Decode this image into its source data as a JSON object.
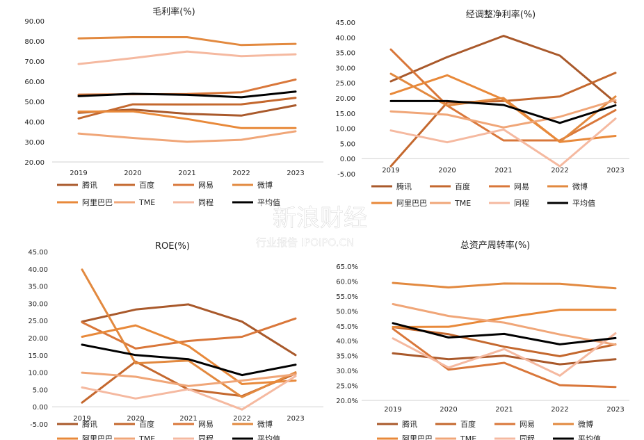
{
  "watermark": {
    "main": "新浪财经",
    "sub": "行业报告 IPOIPO.CN"
  },
  "colors": {
    "腾讯": "#a9592b",
    "百度": "#c4682e",
    "网易": "#d9773a",
    "微博": "#e2893f",
    "阿里巴巴": "#e8893a",
    "TME": "#f0a678",
    "同程": "#f5b9a0",
    "平均值": "#000000"
  },
  "chart_data": [
    {
      "type": "line",
      "title": "毛利率(%)",
      "categories": [
        "2019",
        "2020",
        "2021",
        "2022",
        "2023"
      ],
      "ylim": [
        20,
        90
      ],
      "yticks": [
        "20.00",
        "30.00",
        "40.00",
        "50.00",
        "60.00",
        "70.00",
        "80.00",
        "90.00"
      ],
      "series": [
        {
          "name": "腾讯",
          "values": [
            44.4,
            46.0,
            43.9,
            43.0,
            48.1
          ]
        },
        {
          "name": "百度",
          "values": [
            41.6,
            48.6,
            48.5,
            48.6,
            51.8
          ]
        },
        {
          "name": "网易",
          "values": [
            53.4,
            53.6,
            53.7,
            54.6,
            60.9
          ]
        },
        {
          "name": "微博",
          "values": [
            81.3,
            81.9,
            81.9,
            78.0,
            78.6
          ]
        },
        {
          "name": "阿里巴巴",
          "values": [
            45.0,
            45.1,
            41.3,
            36.8,
            36.8
          ]
        },
        {
          "name": "TME",
          "values": [
            34.1,
            31.9,
            30.0,
            31.0,
            35.2
          ]
        },
        {
          "name": "同程",
          "values": [
            68.6,
            71.5,
            74.8,
            72.5,
            73.4
          ]
        },
        {
          "name": "平均值",
          "values": [
            52.7,
            53.8,
            53.3,
            52.1,
            54.9
          ]
        }
      ],
      "legend": [
        "腾讯",
        "百度",
        "网易",
        "微博",
        "阿里巴巴",
        "TME",
        "同程",
        "平均值"
      ]
    },
    {
      "type": "line",
      "title": "经调整净利率(%)",
      "categories": [
        "2019",
        "2020",
        "2021",
        "2022",
        "2023"
      ],
      "ylim": [
        -5,
        45
      ],
      "yticks": [
        "-5.00",
        "0.00",
        "5.00",
        "10.00",
        "15.00",
        "20.00",
        "25.00",
        "30.00",
        "35.00",
        "40.00",
        "45.00"
      ],
      "series": [
        {
          "name": "腾讯",
          "values": [
            25.5,
            33.5,
            40.5,
            34.0,
            18.5
          ]
        },
        {
          "name": "百度",
          "values": [
            -2.5,
            18.5,
            19.0,
            20.5,
            28.3
          ]
        },
        {
          "name": "网易",
          "values": [
            36.0,
            17.5,
            6.0,
            6.0,
            16.0
          ]
        },
        {
          "name": "微博",
          "values": [
            28.0,
            17.5,
            20.0,
            5.5,
            20.5
          ]
        },
        {
          "name": "阿里巴巴",
          "values": [
            21.3,
            27.5,
            19.5,
            5.5,
            7.5
          ]
        },
        {
          "name": "TME",
          "values": [
            15.6,
            14.5,
            10.3,
            13.8,
            19.3
          ]
        },
        {
          "name": "同程",
          "values": [
            9.3,
            5.4,
            9.6,
            -2.5,
            13.2
          ]
        },
        {
          "name": "平均值",
          "values": [
            19.0,
            19.0,
            17.7,
            11.8,
            17.6
          ]
        }
      ],
      "legend": [
        "腾讯",
        "百度",
        "网易",
        "微博",
        "阿里巴巴",
        "TME",
        "同程",
        "平均值"
      ]
    },
    {
      "type": "line",
      "title": "ROE(%)",
      "categories": [
        "2019",
        "2020",
        "2021",
        "2022",
        "2023"
      ],
      "ylim": [
        -5,
        45
      ],
      "yticks": [
        "-5.00",
        "0.00",
        "5.00",
        "10.00",
        "15.00",
        "20.00",
        "25.00",
        "30.00",
        "35.00",
        "40.00",
        "45.00"
      ],
      "series": [
        {
          "name": "腾讯",
          "values": [
            24.7,
            28.2,
            29.7,
            24.7,
            15.0
          ]
        },
        {
          "name": "百度",
          "values": [
            1.2,
            13.1,
            5.0,
            3.1,
            9.6
          ]
        },
        {
          "name": "网易",
          "values": [
            24.5,
            16.9,
            19.1,
            20.3,
            25.6
          ]
        },
        {
          "name": "微博",
          "values": [
            39.8,
            12.6,
            13.4,
            2.8,
            10.0
          ]
        },
        {
          "name": "阿里巴巴",
          "values": [
            20.3,
            23.6,
            17.6,
            6.6,
            7.6
          ]
        },
        {
          "name": "TME",
          "values": [
            9.9,
            8.7,
            6.0,
            7.6,
            9.4
          ]
        },
        {
          "name": "同程",
          "values": [
            5.6,
            2.4,
            5.1,
            -0.8,
            8.9
          ]
        },
        {
          "name": "平均值",
          "values": [
            18.0,
            15.0,
            13.8,
            9.2,
            12.2
          ]
        }
      ],
      "legend": [
        "腾讯",
        "百度",
        "网易",
        "微博",
        "阿里巴巴",
        "TME",
        "同程",
        "平均值"
      ]
    },
    {
      "type": "line",
      "title": "总资产周转率(%)",
      "categories": [
        "2019",
        "2020",
        "2021",
        "2022",
        "2023"
      ],
      "ylim": [
        20,
        65
      ],
      "yticks": [
        "20.0%",
        "25.0%",
        "30.0%",
        "35.0%",
        "40.0%",
        "45.0%",
        "50.0%",
        "55.0%",
        "60.0%",
        "65.0%"
      ],
      "series": [
        {
          "name": "腾讯",
          "values": [
            35.8,
            33.8,
            35.0,
            32.1,
            33.8
          ]
        },
        {
          "name": "百度",
          "values": [
            44.6,
            42.2,
            38.0,
            34.8,
            38.8
          ]
        },
        {
          "name": "网易",
          "values": [
            44.0,
            30.3,
            32.6,
            25.1,
            24.5
          ]
        },
        {
          "name": "微博",
          "values": [
            59.4,
            57.9,
            59.2,
            59.1,
            57.6
          ]
        },
        {
          "name": "阿里巴巴",
          "values": [
            44.6,
            44.7,
            47.7,
            50.4,
            50.4
          ]
        },
        {
          "name": "TME",
          "values": [
            52.3,
            48.3,
            46.1,
            42.1,
            38.7
          ]
        },
        {
          "name": "同程",
          "values": [
            40.8,
            31.0,
            37.2,
            28.3,
            42.5
          ]
        },
        {
          "name": "平均值",
          "values": [
            45.9,
            41.1,
            42.3,
            38.8,
            40.9
          ]
        }
      ],
      "legend": [
        "腾讯",
        "百度",
        "网易",
        "微博",
        "阿里巴巴",
        "TME",
        "同程",
        "平均值"
      ]
    }
  ]
}
